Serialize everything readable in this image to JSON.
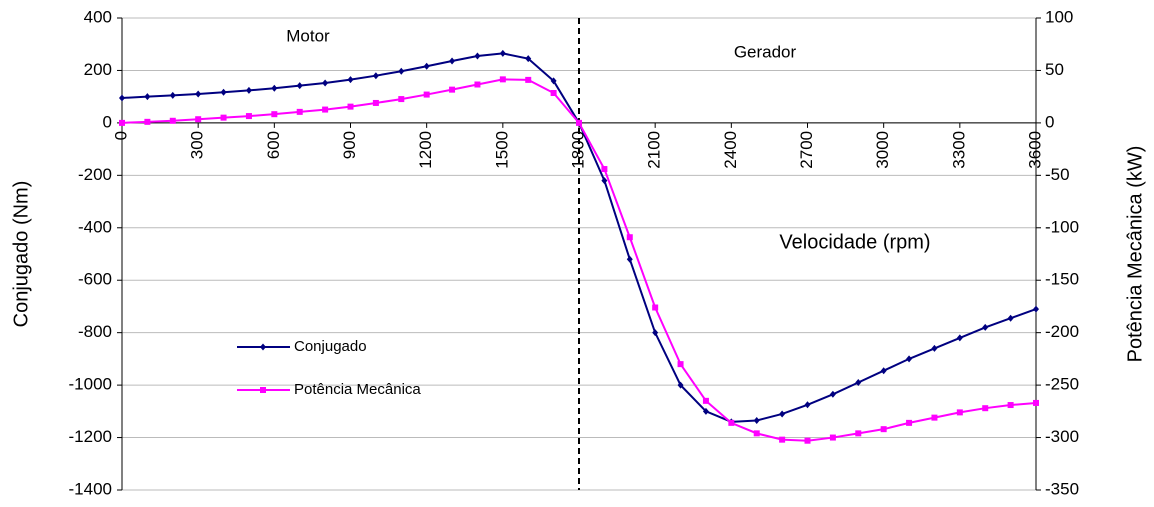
{
  "chart_data": {
    "type": "line",
    "xlabel": "Velocidade (rpm)",
    "ylabel": "Conjugado (Nm)",
    "y2label": "Potência Mecânica (kW)",
    "annotations": [
      "Motor",
      "Gerador"
    ],
    "reference_line_x": 1800,
    "x": [
      0,
      100,
      200,
      300,
      400,
      500,
      600,
      700,
      800,
      900,
      1000,
      1100,
      1200,
      1300,
      1400,
      1500,
      1600,
      1700,
      1800,
      1900,
      2000,
      2100,
      2200,
      2300,
      2400,
      2500,
      2600,
      2700,
      2800,
      2900,
      3000,
      3100,
      3200,
      3300,
      3400,
      3500,
      3600
    ],
    "series": [
      {
        "name": "Conjugado",
        "color": "#000080",
        "marker": "diamond",
        "values": [
          95,
          100,
          105,
          110,
          117,
          124,
          132,
          142,
          152,
          165,
          180,
          197,
          216,
          236,
          255,
          265,
          245,
          160,
          0,
          -220,
          -520,
          -800,
          -1000,
          -1100,
          -1140,
          -1135,
          -1110,
          -1075,
          -1035,
          -990,
          -945,
          -900,
          -860,
          -820,
          -780,
          -745,
          -710
        ]
      },
      {
        "name": "Potência Mecânica",
        "color": "#ff00ff",
        "marker": "square",
        "axis": "y2",
        "values": [
          0,
          1,
          2,
          3.5,
          5,
          6.5,
          8.3,
          10.5,
          12.7,
          15.5,
          19,
          22.7,
          27,
          31.7,
          36.6,
          41.5,
          41,
          28.5,
          0,
          -44,
          -109,
          -176,
          -230,
          -265,
          -286,
          -296,
          -302,
          -303,
          -300,
          -296,
          -292,
          -286,
          -281,
          -276,
          -272,
          -269,
          -267
        ]
      }
    ],
    "xlim": [
      0,
      3600
    ],
    "xticks": [
      0,
      300,
      600,
      900,
      1200,
      1500,
      1800,
      2100,
      2400,
      2700,
      3000,
      3300,
      3600
    ],
    "ylim": [
      -1400,
      400
    ],
    "yticks": [
      -1400,
      -1200,
      -1000,
      -800,
      -600,
      -400,
      -200,
      0,
      200,
      400
    ],
    "y2lim": [
      -350,
      100
    ],
    "y2ticks": [
      -350,
      -300,
      -250,
      -200,
      -150,
      -100,
      -50,
      0,
      50,
      100
    ],
    "grid": true,
    "legend": "lower left"
  }
}
